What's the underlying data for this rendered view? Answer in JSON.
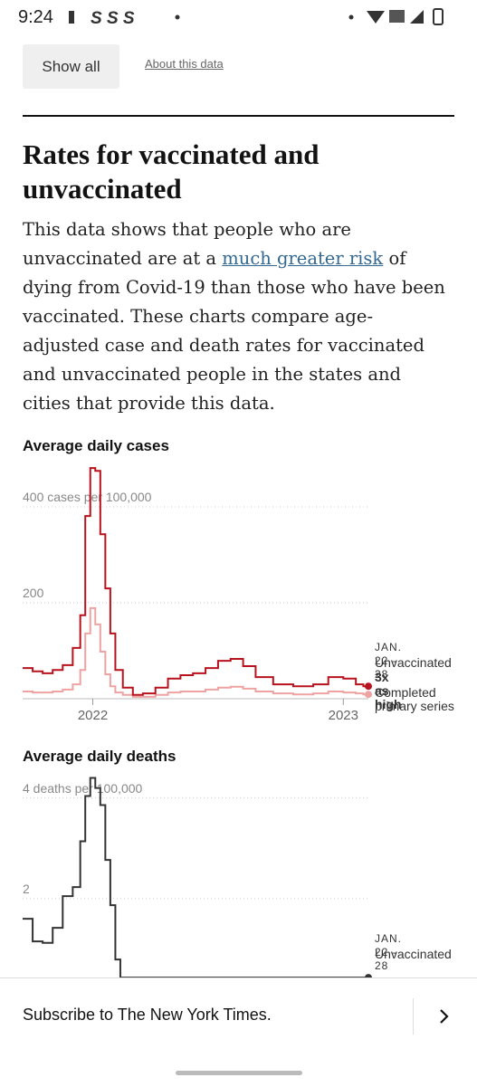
{
  "status_bar": {
    "time": "9:24"
  },
  "controls": {
    "show_all": "Show all",
    "about": "About this data"
  },
  "article": {
    "title": "Rates for vaccinated and unvaccinated",
    "body_before": "This data shows that people who are unvaccinated are at a ",
    "body_link": "much greater risk",
    "body_after": " of dying from Covid-19 than those who have been vaccinated. These charts compare age-adjusted case and death rates for vaccinated and unvaccinated people in the states and cities that provide this data."
  },
  "chart_data": [
    {
      "type": "line",
      "title": "Average daily cases",
      "x": [
        2021.72,
        2021.76,
        2021.8,
        2021.84,
        2021.88,
        2021.92,
        2021.95,
        2021.97,
        2021.99,
        2022.01,
        2022.03,
        2022.05,
        2022.07,
        2022.09,
        2022.12,
        2022.16,
        2022.2,
        2022.25,
        2022.3,
        2022.35,
        2022.4,
        2022.45,
        2022.5,
        2022.55,
        2022.6,
        2022.65,
        2022.72,
        2022.8,
        2022.88,
        2022.94,
        2023.0,
        2023.05,
        2023.08
      ],
      "series": [
        {
          "name": "Unvaccinated",
          "color": "#b7121d",
          "values": [
            64,
            57,
            53,
            60,
            70,
            106,
            174,
            381,
            481,
            475,
            343,
            230,
            136,
            60,
            23,
            8,
            11,
            23,
            42,
            49,
            53,
            64,
            79,
            83,
            68,
            45,
            30,
            26,
            30,
            45,
            42,
            30,
            26
          ]
        },
        {
          "name": "Completed primary series",
          "color": "#eea2a2",
          "values": [
            15,
            13,
            13,
            15,
            19,
            30,
            60,
            136,
            189,
            155,
            98,
            51,
            26,
            13,
            8,
            4,
            4,
            8,
            13,
            15,
            15,
            19,
            23,
            25,
            21,
            15,
            11,
            9,
            11,
            15,
            13,
            11,
            9
          ]
        }
      ],
      "xlim": [
        2021.72,
        2023.1
      ],
      "xticks": [
        2022,
        2023
      ],
      "ylim": [
        0,
        500
      ],
      "yticks": [
        {
          "value": 400,
          "label": "400 cases per 100,000"
        },
        200
      ],
      "annotations": {
        "week": "JAN. 22 - 28",
        "ratio": "3x as high"
      }
    },
    {
      "type": "line",
      "title": "Average daily deaths",
      "x": [
        2021.72,
        2021.76,
        2021.8,
        2021.84,
        2021.88,
        2021.92,
        2021.95,
        2021.97,
        2021.99,
        2022.01,
        2022.03,
        2022.05,
        2022.07,
        2022.09,
        2022.11
      ],
      "series": [
        {
          "name": "Unvaccinated",
          "color": "#333333",
          "values": [
            1.6,
            1.15,
            1.12,
            1.42,
            2.05,
            2.23,
            3.14,
            4.04,
            4.4,
            4.2,
            3.86,
            2.77,
            1.87,
            0.79,
            0.43
          ]
        }
      ],
      "xlim": [
        2021.72,
        2023.1
      ],
      "ylim": [
        0,
        4.5
      ],
      "yticks": [
        {
          "value": 4,
          "label": "4 deaths per 100,000"
        },
        2
      ],
      "annotations": {
        "week": "JAN. 22 - 28"
      }
    }
  ],
  "footer": {
    "subscribe": "Subscribe to The New York Times."
  }
}
